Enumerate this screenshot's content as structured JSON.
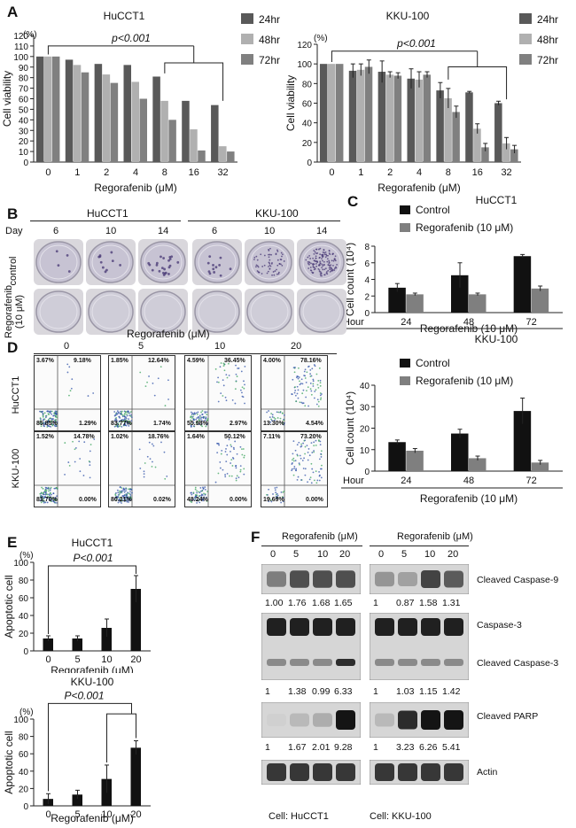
{
  "panel_labels": {
    "A": "A",
    "B": "B",
    "C": "C",
    "D": "D",
    "E": "E",
    "F": "F"
  },
  "chart_data": [
    {
      "type": "bar",
      "id": "A-left",
      "title": "HuCCT1",
      "xlabel": "Regorafenib (μM)",
      "ylabel": "Cell viability",
      "yunit": "(%)",
      "annotation": "p<0.001",
      "categories": [
        "0",
        "1",
        "2",
        "4",
        "8",
        "16",
        "32"
      ],
      "ylim": [
        0,
        120
      ],
      "yticks": [
        0,
        10,
        20,
        30,
        40,
        50,
        60,
        70,
        80,
        90,
        100,
        110,
        120
      ],
      "series": [
        {
          "name": "24hr",
          "color": "#595959",
          "values": [
            100,
            97,
            93,
            92,
            81,
            58,
            54
          ]
        },
        {
          "name": "48hr",
          "color": "#b0b0b0",
          "values": [
            100,
            92,
            83,
            76,
            58,
            31,
            15
          ]
        },
        {
          "name": "72hr",
          "color": "#808080",
          "values": [
            100,
            85,
            75,
            60,
            40,
            11,
            10
          ]
        }
      ]
    },
    {
      "type": "bar",
      "id": "A-right",
      "title": "KKU-100",
      "xlabel": "Regorafenib (μM)",
      "ylabel": "Cell viability",
      "yunit": "(%)",
      "annotation": "p<0.001",
      "categories": [
        "0",
        "1",
        "2",
        "4",
        "8",
        "16",
        "32"
      ],
      "ylim": [
        0,
        120
      ],
      "yticks": [
        0,
        20,
        40,
        60,
        80,
        100,
        120
      ],
      "series": [
        {
          "name": "24hr",
          "color": "#595959",
          "values": [
            100,
            93,
            92,
            85,
            73,
            71,
            60
          ],
          "errors": [
            0,
            7,
            11,
            10,
            8,
            1,
            2
          ]
        },
        {
          "name": "48hr",
          "color": "#b0b0b0",
          "values": [
            100,
            94,
            89,
            84,
            65,
            34,
            19
          ],
          "errors": [
            0,
            6,
            3,
            8,
            10,
            5,
            6
          ]
        },
        {
          "name": "72hr",
          "color": "#808080",
          "values": [
            100,
            97,
            88,
            89,
            51,
            15,
            13
          ],
          "errors": [
            0,
            7,
            3,
            3,
            6,
            4,
            4
          ]
        }
      ]
    },
    {
      "type": "bar",
      "id": "C-top",
      "title": "HuCCT1",
      "xlabel": "Regorafenib (10 μM)",
      "ylabel": "Cell count (10⁴)",
      "xprefix": "Hour",
      "categories": [
        "24",
        "48",
        "72"
      ],
      "ylim": [
        0,
        8
      ],
      "yticks": [
        0,
        2,
        4,
        6,
        8
      ],
      "series": [
        {
          "name": "Control",
          "color": "#111111",
          "values": [
            3.0,
            4.5,
            6.8
          ],
          "errors": [
            0.5,
            1.5,
            0.2
          ]
        },
        {
          "name": "Regorafenib (10 μM)",
          "color": "#7f7f7f",
          "values": [
            2.2,
            2.2,
            2.9
          ],
          "errors": [
            0.15,
            0.15,
            0.3
          ]
        }
      ]
    },
    {
      "type": "bar",
      "id": "C-bottom",
      "title": "KKU-100",
      "xlabel": "Regorafenib (10 μM)",
      "ylabel": "Cell count (10⁴)",
      "xprefix": "Hour",
      "categories": [
        "24",
        "48",
        "72"
      ],
      "ylim": [
        0,
        40
      ],
      "yticks": [
        0,
        10,
        20,
        30,
        40
      ],
      "series": [
        {
          "name": "Control",
          "color": "#111111",
          "values": [
            13.5,
            17.5,
            28
          ],
          "errors": [
            1,
            2,
            6
          ]
        },
        {
          "name": "Regorafenib (10 μM)",
          "color": "#7f7f7f",
          "values": [
            9.5,
            6,
            4
          ],
          "errors": [
            1,
            1,
            1
          ]
        }
      ]
    },
    {
      "type": "bar",
      "id": "E-top",
      "title": "HuCCT1",
      "xlabel": "Regorafenib (μM)",
      "ylabel": "Apoptotic cell",
      "yunit": "(%)",
      "annotation": "P<0.001",
      "categories": [
        "0",
        "5",
        "10",
        "20"
      ],
      "ylim": [
        0,
        100
      ],
      "yticks": [
        0,
        20,
        40,
        60,
        80,
        100
      ],
      "series": [
        {
          "name": "Apoptotic cell",
          "color": "#111111",
          "values": [
            14,
            14,
            26,
            70
          ],
          "errors": [
            3,
            3,
            10,
            15
          ]
        }
      ]
    },
    {
      "type": "bar",
      "id": "E-bottom",
      "title": "KKU-100",
      "xlabel": "Regorafenib (μM)",
      "ylabel": "Apoptotic cell",
      "yunit": "(%)",
      "annotation": "P<0.001",
      "categories": [
        "0",
        "5",
        "10",
        "20"
      ],
      "ylim": [
        0,
        100
      ],
      "yticks": [
        0,
        20,
        40,
        60,
        80,
        100
      ],
      "series": [
        {
          "name": "Apoptotic cell",
          "color": "#111111",
          "values": [
            8,
            13,
            31,
            67
          ],
          "errors": [
            6,
            5,
            16,
            8
          ]
        }
      ]
    }
  ],
  "panelB": {
    "cells": [
      "HuCCT1",
      "KKU-100"
    ],
    "day_label": "Day",
    "days": [
      "6",
      "10",
      "14",
      "6",
      "10",
      "14"
    ],
    "row_labels": [
      "control",
      "Regorafenib\n(10 μM)"
    ],
    "row_label_1a": "Regorafenib",
    "row_label_1b": "(10 μM)"
  },
  "panelD": {
    "header": "Regorafenib (μM)",
    "doses": [
      "0",
      "5",
      "10",
      "20"
    ],
    "rows": [
      {
        "cell": "HuCCT1",
        "quads": [
          [
            "3.67%",
            "9.18%",
            "85.85%",
            "1.29%"
          ],
          [
            "1.85%",
            "12.64%",
            "83.77%",
            "1.74%"
          ],
          [
            "4.59%",
            "36.45%",
            "55.98%",
            "2.97%"
          ],
          [
            "4.00%",
            "78.16%",
            "13.30%",
            "4.54%"
          ]
        ]
      },
      {
        "cell": "KKU-100",
        "quads": [
          [
            "1.52%",
            "14.78%",
            "83.70%",
            "0.00%"
          ],
          [
            "1.02%",
            "18.76%",
            "80.21%",
            "0.02%"
          ],
          [
            "1.64%",
            "50.12%",
            "48.24%",
            "0.00%"
          ],
          [
            "7.11%",
            "73.20%",
            "19.69%",
            "0.00%"
          ]
        ]
      }
    ]
  },
  "panelF": {
    "header": "Regorafenib (μM)",
    "doses": [
      "0",
      "5",
      "10",
      "20"
    ],
    "blots": [
      {
        "name": "Cleaved Caspase-9",
        "left": [
          "1.00",
          "1.76",
          "1.68",
          "1.65"
        ],
        "right": [
          "1",
          "0.87",
          "1.58",
          "1.31"
        ]
      },
      {
        "name": "Caspase-3",
        "left": [],
        "right": []
      },
      {
        "name": "Cleaved Caspase-3",
        "left": [
          "1",
          "1.38",
          "0.99",
          "6.33"
        ],
        "right": [
          "1",
          "1.03",
          "1.15",
          "1.42"
        ]
      },
      {
        "name": "Cleaved PARP",
        "left": [
          "1",
          "1.67",
          "2.01",
          "9.28"
        ],
        "right": [
          "1",
          "3.23",
          "6.26",
          "5.41"
        ]
      },
      {
        "name": "Actin",
        "left": [],
        "right": []
      }
    ],
    "cell_left": "Cell: HuCCT1",
    "cell_right": "Cell: KKU-100"
  }
}
